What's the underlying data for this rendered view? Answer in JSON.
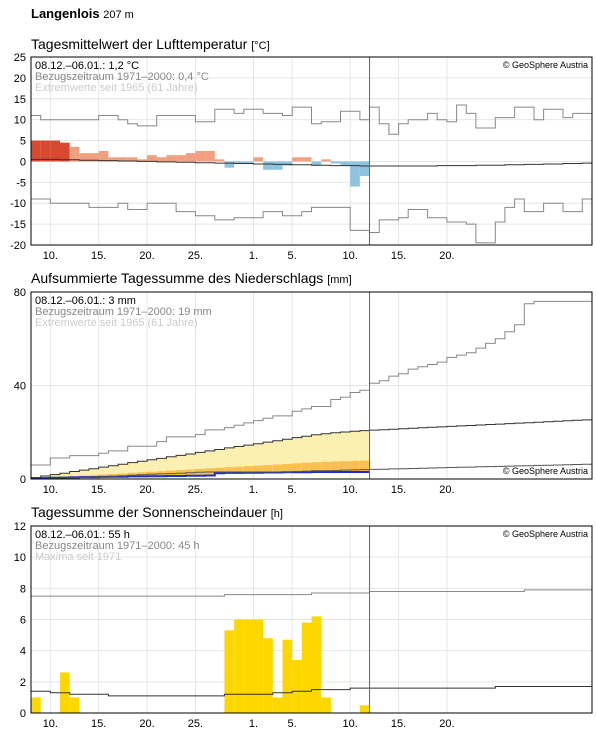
{
  "header": {
    "station": "Langenlois",
    "elevation": "207 m"
  },
  "x_tick_labels": [
    "10.",
    "15.",
    "20.",
    "25.",
    "1.",
    "5.",
    "10.",
    "15.",
    "20."
  ],
  "chart_data": [
    {
      "id": "temperature",
      "type": "bar",
      "title": "Tagesmittelwert der Lufttemperatur",
      "unit": "[°C]",
      "ylim": [
        -20,
        25
      ],
      "yticks": [
        -20,
        -15,
        -10,
        -5,
        0,
        5,
        10,
        15,
        20,
        25
      ],
      "info": [
        "08.12.–06.01.: 1,2 °C",
        "Bezugszeitraum 1971–2000: 0,4 °C",
        "Extremwerte seit 1965 (61 Jahre)"
      ],
      "credit": "© GeoSphere Austria",
      "grid": true,
      "series": [
        {
          "name": "anomaly",
          "colors": {
            "warm_strong": "#d84a30",
            "warm": "#f0a080",
            "cold": "#8cc4e0"
          },
          "values": [
            5,
            5,
            5,
            4.5,
            3.5,
            2,
            2,
            2.5,
            1,
            1,
            1,
            0.5,
            1.5,
            1,
            1.5,
            1.5,
            2,
            2.5,
            2.5,
            0.5,
            -1.5,
            -0.5,
            -0.5,
            1,
            -2,
            -2,
            -1,
            1,
            1,
            -1,
            0.5,
            -0.5,
            -1,
            -6,
            -3.5
          ]
        },
        {
          "name": "Extremwerte max",
          "values": [
            11,
            10,
            10,
            10,
            10,
            10,
            10,
            11,
            11,
            10,
            9,
            8.5,
            8.5,
            11,
            11,
            11,
            11,
            9.5,
            9.5,
            12.5,
            12.5,
            11.5,
            12.5,
            12.5,
            11.5,
            11.5,
            11,
            13,
            13,
            9,
            9.5,
            9.5,
            12,
            12,
            10,
            13,
            9,
            6.5,
            9,
            10,
            10,
            11.5,
            10,
            9.5,
            13.5,
            11.5,
            8,
            8,
            10.5,
            10.5,
            13,
            13,
            10,
            12.5,
            12.5,
            10.5,
            11.5,
            11.5
          ]
        },
        {
          "name": "Mittel 1971–2000",
          "values": [
            0.5,
            0.5,
            0.5,
            0.4,
            0.4,
            0.3,
            0.3,
            0.2,
            0.2,
            0.1,
            0.1,
            0.0,
            0.0,
            -0.1,
            -0.1,
            -0.2,
            -0.2,
            -0.3,
            -0.3,
            -0.4,
            -0.4,
            -0.5,
            -0.5,
            -0.6,
            -0.6,
            -0.7,
            -0.7,
            -0.8,
            -0.8,
            -0.9,
            -0.9,
            -1.0,
            -1.0,
            -1.0,
            -1.1,
            -1.1,
            -1.1,
            -1.1,
            -1.1,
            -1.1,
            -1.1,
            -1.1,
            -1.0,
            -1.0,
            -1.0,
            -1.0,
            -0.9,
            -0.9,
            -0.9,
            -0.8,
            -0.8,
            -0.7,
            -0.7,
            -0.6,
            -0.6,
            -0.5,
            -0.5,
            -0.4
          ]
        },
        {
          "name": "Extremwerte min",
          "values": [
            -9,
            -9,
            -10,
            -10,
            -10,
            -10,
            -11,
            -11,
            -11,
            -10,
            -11.5,
            -11.5,
            -10,
            -10,
            -10,
            -12,
            -12,
            -13,
            -13,
            -14,
            -14,
            -13.5,
            -13.5,
            -13.5,
            -12,
            -12,
            -13,
            -13,
            -12,
            -11,
            -11,
            -11,
            -11,
            -16.5,
            -16.5,
            -17,
            -14,
            -14,
            -13.5,
            -11.5,
            -11.5,
            -13.5,
            -13.5,
            -14.5,
            -14.5,
            -15,
            -19.5,
            -19.5,
            -14.5,
            -11,
            -9,
            -12,
            -12,
            -10,
            -10,
            -12,
            -12,
            -9
          ]
        }
      ]
    },
    {
      "id": "precipitation",
      "type": "area",
      "title": "Aufsummierte Tagessumme des Niederschlags",
      "unit": "[mm]",
      "ylim": [
        0,
        80
      ],
      "yticks": [
        0,
        40,
        80
      ],
      "info": [
        "08.12.–06.01.: 3 mm",
        "Bezugszeitraum 1971–2000: 19 mm",
        "Extremwerte seit 1965 (61 Jahre)"
      ],
      "credit": "© GeoSphere Austria",
      "grid": true,
      "colors": {
        "light": "#fcf0b0",
        "mid": "#f9c050",
        "dark": "#1c2fc8"
      },
      "series": [
        {
          "name": "Extremwerte max",
          "values": [
            6,
            6,
            9,
            9,
            10,
            10,
            10,
            11,
            12,
            12,
            14,
            14,
            14,
            16,
            18,
            18,
            18,
            19,
            21,
            21,
            22,
            23,
            24,
            25,
            26,
            27,
            27,
            29,
            30,
            31,
            31,
            34,
            35,
            37,
            38,
            41,
            42,
            44,
            45,
            47,
            48,
            49,
            50,
            52,
            53,
            54,
            56,
            58,
            60,
            63,
            66,
            75,
            76,
            76,
            76,
            76,
            76,
            76
          ]
        },
        {
          "name": "Mittel 1971–2000",
          "values": [
            0.6,
            1.3,
            1.9,
            2.5,
            3.2,
            3.8,
            4.4,
            5.1,
            5.7,
            6.3,
            7.0,
            7.6,
            8.2,
            8.8,
            9.5,
            10.1,
            10.7,
            11.4,
            12.0,
            12.6,
            13.3,
            13.9,
            14.5,
            15.1,
            15.8,
            16.4,
            17.0,
            17.7,
            18.3,
            18.9,
            19.4,
            19.8,
            20.1,
            20.4,
            20.7,
            20.9,
            21.1,
            21.3,
            21.5,
            21.7,
            21.9,
            22.1,
            22.3,
            22.5,
            22.7,
            22.9,
            23.1,
            23.3,
            23.5,
            23.7,
            23.9,
            24.1,
            24.3,
            24.5,
            24.7,
            24.9,
            25.1,
            25.3
          ]
        },
        {
          "name": "Extremwerte min",
          "values": [
            0,
            0,
            0.2,
            0.3,
            0.5,
            0.7,
            0.9,
            1,
            1.2,
            1.4,
            1.6,
            1.8,
            2,
            2.2,
            2.3,
            2.5,
            2.7,
            2.9,
            3,
            3,
            3,
            3,
            3,
            3,
            3,
            3,
            3,
            3.2,
            3.3,
            3.5,
            3.5,
            3.6,
            3.8,
            3.9,
            4,
            4.1,
            4.2,
            4.3,
            4.4,
            4.5,
            4.6,
            4.7,
            4.8,
            4.9,
            5,
            5.1,
            5.2,
            5.3,
            5.4,
            5.5,
            5.6,
            5.7,
            5.8,
            5.9,
            6,
            6.1,
            6.2,
            6.3
          ]
        },
        {
          "name": "08.12.–06.01.",
          "values": [
            0.3,
            0.4,
            0.5,
            0.6,
            0.7,
            0.8,
            0.8,
            0.9,
            1.0,
            1.0,
            1.1,
            1.1,
            1.2,
            1.2,
            1.3,
            1.3,
            1.4,
            1.4,
            1.5,
            2.5,
            2.6,
            2.6,
            2.7,
            2.7,
            2.8,
            2.8,
            2.9,
            2.9,
            2.9,
            3.0,
            3.0,
            3.0,
            3.0,
            3.0,
            3.0
          ]
        }
      ]
    },
    {
      "id": "sunshine",
      "type": "bar",
      "title": "Tagessumme der Sonnenscheindauer",
      "unit": "[h]",
      "ylim": [
        0,
        12
      ],
      "yticks": [
        0,
        2,
        4,
        6,
        8,
        10,
        12
      ],
      "info": [
        "08.12.–06.01.: 55 h",
        "Bezugszeitraum 1971–2000: 45 h",
        "Maxima seit 1971"
      ],
      "credit": "© GeoSphere Austria",
      "grid": true,
      "colors": {
        "bar": "#ffd700"
      },
      "series": [
        {
          "name": "08.12.–06.01.",
          "values": [
            1.0,
            0,
            0,
            2.6,
            1.0,
            0,
            0,
            0,
            0,
            0,
            0,
            0,
            0,
            0,
            0,
            0,
            0,
            0,
            0,
            0,
            5.3,
            6.0,
            6.0,
            6.0,
            4.8,
            1.0,
            4.7,
            3.4,
            5.8,
            6.2,
            1.0,
            0,
            0,
            0,
            0.5
          ]
        },
        {
          "name": "Maxima",
          "values": [
            7.5,
            7.5,
            7.5,
            7.5,
            7.5,
            7.5,
            7.5,
            7.5,
            7.5,
            7.5,
            7.5,
            7.5,
            7.5,
            7.5,
            7.5,
            7.5,
            7.5,
            7.5,
            7.5,
            7.5,
            7.6,
            7.6,
            7.6,
            7.6,
            7.6,
            7.6,
            7.6,
            7.6,
            7.6,
            7.7,
            7.7,
            7.7,
            7.7,
            7.7,
            7.7,
            7.8,
            7.8,
            7.8,
            7.8,
            7.8,
            7.8,
            7.8,
            7.8,
            7.8,
            7.8,
            7.8,
            7.8,
            7.8,
            7.8,
            7.8,
            7.8,
            7.9,
            7.9,
            7.9,
            7.9,
            7.9,
            7.9,
            7.9
          ]
        },
        {
          "name": "Mittel 1971–2000",
          "values": [
            1.4,
            1.4,
            1.3,
            1.3,
            1.2,
            1.2,
            1.2,
            1.2,
            1.1,
            1.1,
            1.1,
            1.1,
            1.1,
            1.1,
            1.1,
            1.1,
            1.1,
            1.1,
            1.1,
            1.1,
            1.2,
            1.2,
            1.2,
            1.2,
            1.2,
            1.3,
            1.3,
            1.4,
            1.4,
            1.5,
            1.5,
            1.5,
            1.5,
            1.6,
            1.6,
            1.6,
            1.6,
            1.6,
            1.6,
            1.6,
            1.6,
            1.6,
            1.6,
            1.6,
            1.6,
            1.6,
            1.6,
            1.6,
            1.7,
            1.7,
            1.7,
            1.7,
            1.7,
            1.7,
            1.7,
            1.7,
            1.7,
            1.7
          ]
        }
      ]
    }
  ]
}
